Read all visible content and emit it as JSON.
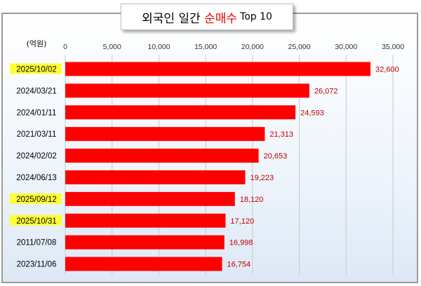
{
  "title": {
    "prefix": "외국인 일간 ",
    "accent": "순매수",
    "suffix": "Top 10"
  },
  "colors": {
    "bar": "#ff0000",
    "value_label": "#c00000",
    "highlight": "#ffff33",
    "title_accent": "#e60000"
  },
  "chart_data": {
    "type": "bar",
    "orientation": "horizontal",
    "unit_label": "(억원)",
    "categories": [
      "2025/10/02",
      "2024/03/21",
      "2024/01/11",
      "2021/03/11",
      "2024/02/02",
      "2024/06/13",
      "2025/09/12",
      "2025/10/31",
      "2011/07/08",
      "2023/11/06"
    ],
    "values": [
      32600,
      26072,
      24593,
      21313,
      20653,
      19223,
      18120,
      17120,
      16998,
      16754
    ],
    "value_labels": [
      "32,600",
      "26,072",
      "24,593",
      "21,313",
      "20,653",
      "19,223",
      "18,120",
      "17,120",
      "16,998",
      "16,754"
    ],
    "highlighted": [
      "2025/10/02",
      "2025/09/12",
      "2025/10/31"
    ],
    "xlim": [
      0,
      35000
    ],
    "xticks": [
      0,
      5000,
      10000,
      15000,
      20000,
      25000,
      30000,
      35000
    ],
    "xtick_labels": [
      "0",
      "5,000",
      "10,000",
      "15,000",
      "20,000",
      "25,000",
      "30,000",
      "35,000"
    ],
    "x_axis_position": "top",
    "grid": true
  }
}
